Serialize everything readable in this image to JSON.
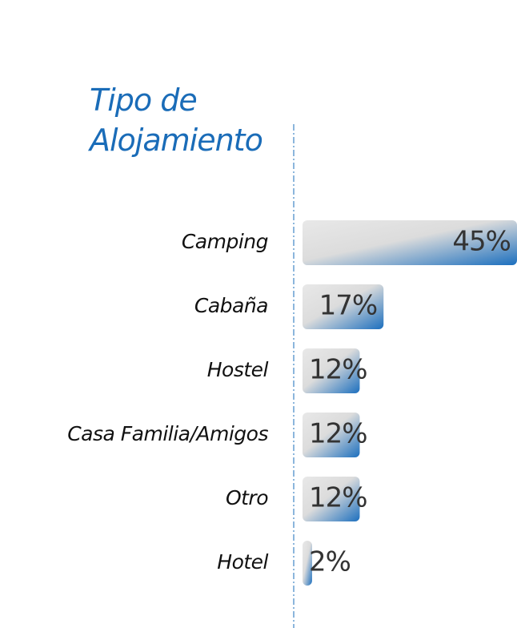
{
  "chart_data": {
    "type": "bar",
    "orientation": "horizontal",
    "title": "Tipo de Alojamiento",
    "categories": [
      "Camping",
      "Cabaña",
      "Hostel",
      "Casa Familia/Amigos",
      "Otro",
      "Hotel"
    ],
    "values": [
      45,
      17,
      12,
      12,
      12,
      2
    ],
    "value_labels": [
      "45%",
      "17%",
      "12%",
      "12%",
      "12%",
      "2%"
    ],
    "color": "#1c6fbe"
  }
}
